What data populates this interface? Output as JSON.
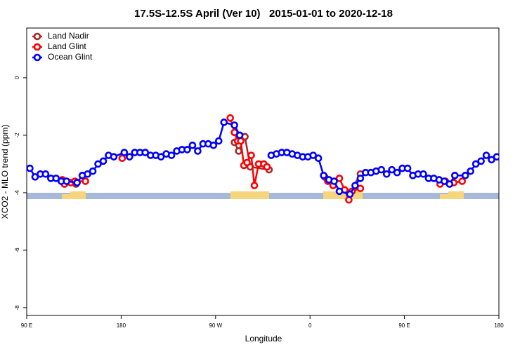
{
  "chart_data": {
    "type": "line",
    "title": "17.5S-12.5S April (Ver 10)   2015-01-01 to 2020-12-18",
    "xlabel": "Longitude",
    "ylabel": "XCO2 - MLO trend (ppm)",
    "xlim": [
      90,
      540
    ],
    "xticks": [
      {
        "value": 90,
        "label": "90 E"
      },
      180,
      {
        "value": 270,
        "label": "90 W"
      },
      {
        "value": 360,
        "label": "0"
      },
      {
        "value": 450,
        "label": "90 E"
      },
      {
        "value": 540,
        "label": "180"
      }
    ],
    "ylim": [
      -8.27,
      1.73
    ],
    "yticks": [
      0,
      -2,
      -4,
      -6,
      -8
    ],
    "grid": false,
    "legend": "top-left",
    "series": [
      {
        "name": "Land Nadir",
        "color": "#a52a2a",
        "x": [
          137,
          null,
          288,
          292,
          298,
          303,
          321,
          null,
          398,
          408
        ],
        "values": [
          -3.7,
          null,
          -2.25,
          -2.55,
          -2.05,
          -3.1,
          -3.2,
          null,
          -4.0,
          -3.35
        ]
      },
      {
        "name": "Land Glint",
        "color": "#ff0000",
        "x": [
          124,
          126,
          132,
          136,
          146,
          null,
          181,
          null,
          284,
          288,
          291,
          294,
          297,
          300,
          304,
          307,
          311,
          316,
          319,
          null,
          374,
          377,
          382,
          388,
          393,
          397,
          400,
          408,
          null,
          484,
          489,
          497,
          505
        ],
        "values": [
          -3.55,
          -3.7,
          -3.65,
          -3.6,
          -3.6,
          null,
          -2.8,
          null,
          -1.4,
          -1.9,
          -2.2,
          -2.2,
          -3.05,
          -2.95,
          -2.7,
          -3.75,
          -3.0,
          -3.0,
          -3.1,
          null,
          -3.45,
          -3.6,
          -3.75,
          -3.5,
          -3.9,
          -4.25,
          -3.95,
          -3.85,
          null,
          -3.7,
          -3.6,
          -3.65,
          -3.6
        ]
      },
      {
        "name": "Ocean Glint",
        "color": "#0000ff",
        "x": [
          93,
          98,
          103,
          108,
          113,
          118,
          123,
          128,
          138,
          143,
          148,
          153,
          158,
          163,
          168,
          173,
          183,
          188,
          193,
          198,
          203,
          208,
          213,
          218,
          223,
          228,
          233,
          238,
          243,
          248,
          253,
          258,
          263,
          268,
          273,
          278,
          288,
          293,
          298,
          303,
          null,
          323,
          328,
          333,
          338,
          343,
          348,
          353,
          358,
          363,
          368,
          373,
          378,
          383,
          388,
          398,
          403,
          408,
          413,
          418,
          423,
          428,
          433,
          438,
          443,
          448,
          453,
          458,
          463,
          468,
          473,
          478,
          483,
          488,
          493,
          498,
          508,
          513,
          518,
          523,
          528,
          533,
          538,
          543
        ],
        "values": [
          -3.15,
          -3.45,
          -3.35,
          -3.35,
          -3.5,
          -3.5,
          -3.6,
          -3.6,
          -3.65,
          -3.4,
          -3.35,
          -3.25,
          -3.0,
          -2.9,
          -2.7,
          -2.75,
          -2.6,
          -2.75,
          -2.6,
          -2.6,
          -2.6,
          -2.7,
          -2.7,
          -2.75,
          -2.65,
          -2.7,
          -2.55,
          -2.5,
          -2.5,
          -2.35,
          -2.55,
          -2.3,
          -2.3,
          -2.35,
          -2.2,
          -1.55,
          -1.65,
          -2.0,
          null,
          null,
          null,
          -2.7,
          -2.65,
          -2.6,
          -2.6,
          -2.65,
          -2.7,
          -2.75,
          -2.75,
          -2.7,
          -2.8,
          -3.4,
          -3.55,
          -3.6,
          -3.95,
          -4.05,
          -3.75,
          -3.5,
          -3.3,
          -3.3,
          -3.25,
          -3.2,
          -3.35,
          -3.2,
          -3.3,
          -3.15,
          -3.15,
          -3.4,
          -3.35,
          -3.35,
          -3.5,
          -3.5,
          -3.55,
          -3.6,
          -3.7,
          -3.4,
          -3.4,
          -3.25,
          -3.0,
          -2.9,
          -2.7,
          -2.85,
          -2.75,
          null
        ]
      }
    ]
  }
}
